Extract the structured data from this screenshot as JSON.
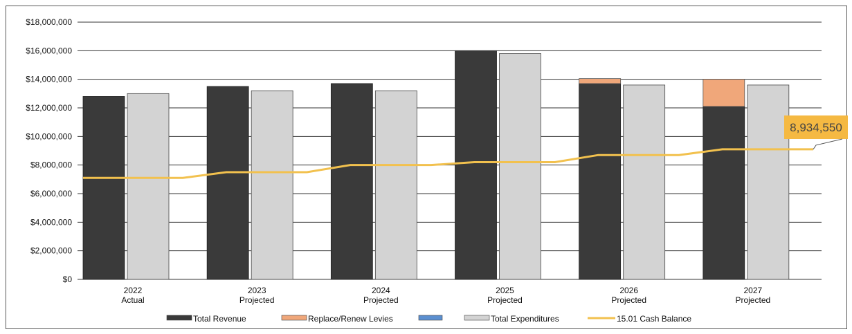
{
  "chart_data": {
    "type": "bar",
    "categories": [
      {
        "year": "2022",
        "status": "Actual"
      },
      {
        "year": "2023",
        "status": "Projected"
      },
      {
        "year": "2024",
        "status": "Projected"
      },
      {
        "year": "2025",
        "status": "Projected"
      },
      {
        "year": "2026",
        "status": "Projected"
      },
      {
        "year": "2027",
        "status": "Projected"
      }
    ],
    "series": [
      {
        "name": "Total Revenue",
        "color": "#3a3a3a",
        "values": [
          12800000,
          13500000,
          13700000,
          16000000,
          13700000,
          12100000
        ]
      },
      {
        "name": "Replace/Renew Levies",
        "color": "#f0a77a",
        "values": [
          0,
          0,
          0,
          0,
          350000,
          1900000
        ]
      },
      {
        "name": "",
        "color": "#5b8fd0",
        "values": [
          0,
          0,
          0,
          0,
          0,
          0
        ]
      },
      {
        "name": "Total Expenditures",
        "color": "#d3d3d3",
        "values": [
          13000000,
          13200000,
          13200000,
          15800000,
          13600000,
          13600000
        ]
      },
      {
        "name": "15.01 Cash Balance",
        "color": "#f2c14e",
        "type": "line",
        "values": [
          7100000,
          7500000,
          8000000,
          8200000,
          8700000,
          9100000
        ]
      }
    ],
    "yaxis": {
      "ylim": [
        0,
        18000000
      ],
      "ticks": [
        "$0",
        "$2,000,000",
        "$4,000,000",
        "$6,000,000",
        "$8,000,000",
        "$10,000,000",
        "$12,000,000",
        "$14,000,000",
        "$16,000,000",
        "$18,000,000"
      ]
    },
    "callout": {
      "text": "8,934,550",
      "color": "#f5b942"
    },
    "legend_position": "bottom",
    "grid": true
  }
}
